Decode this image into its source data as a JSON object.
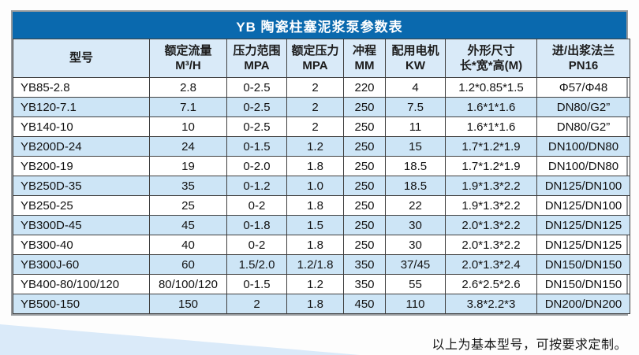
{
  "chart_data": {
    "type": "table",
    "title": "YB 陶瓷柱塞泥浆泵参数表",
    "columns": [
      "型号",
      "额定流量 M³/H",
      "压力范围 MPA",
      "额定压力 MPA",
      "冲程 MM",
      "配用电机 KW",
      "外形尺寸 长*宽*高(M)",
      "进/出浆法兰 PN16"
    ],
    "rows": [
      [
        "YB85-2.8",
        "2.8",
        "0-2.5",
        "2",
        "220",
        "4",
        "1.2*0.85*1.5",
        "Φ57/Φ48"
      ],
      [
        "YB120-7.1",
        "7.1",
        "0-2.5",
        "2",
        "250",
        "7.5",
        "1.6*1*1.6",
        "DN80/G2”"
      ],
      [
        "YB140-10",
        "10",
        "0-2.5",
        "2",
        "250",
        "11",
        "1.6*1*1.6",
        "DN80/G2”"
      ],
      [
        "YB200D-24",
        "24",
        "0-1.5",
        "1.2",
        "250",
        "15",
        "1.7*1.2*1.9",
        "DN100/DN80"
      ],
      [
        "YB200-19",
        "19",
        "0-2.0",
        "1.8",
        "250",
        "18.5",
        "1.7*1.2*1.9",
        "DN100/DN80"
      ],
      [
        "YB250D-35",
        "35",
        "0-1.2",
        "1.0",
        "250",
        "18.5",
        "1.9*1.3*2.2",
        "DN125/DN100"
      ],
      [
        "YB250-25",
        "25",
        "0-2",
        "1.8",
        "250",
        "22",
        "1.9*1.3*2.2",
        "DN125/DN100"
      ],
      [
        "YB300D-45",
        "45",
        "0-1.8",
        "1.5",
        "250",
        "30",
        "2.0*1.3*2.2",
        "DN125/DN125"
      ],
      [
        "YB300-40",
        "40",
        "0-2",
        "1.8",
        "250",
        "30",
        "2.0*1.3*2.2",
        "DN125/DN125"
      ],
      [
        "YB300J-60",
        "60",
        "1.5/2.0",
        "1.2/1.8",
        "350",
        "37/45",
        "2.0*1.3*2.4",
        "DN150/DN150"
      ],
      [
        "YB400-80/100/120",
        "80/100/120",
        "0-1.5",
        "1.2",
        "350",
        "55",
        "2.6*2.5*2.6",
        "DN150/DN150"
      ],
      [
        "YB500-150",
        "150",
        "2",
        "1.8",
        "450",
        "110",
        "3.8*2.2*3",
        "DN200/DN200"
      ]
    ],
    "footnote": "以上为基本型号，可按要求定制。",
    "layout": "header row light blue, data rows alternate white / light blue stripes"
  },
  "ui": {
    "columns": [
      {
        "line1": "型号",
        "line2": ""
      },
      {
        "line1": "额定流量",
        "line2": "M³/H"
      },
      {
        "line1": "压力范围",
        "line2": "MPA"
      },
      {
        "line1": "额定压力",
        "line2": "MPA"
      },
      {
        "line1": "冲程",
        "line2": "MM"
      },
      {
        "line1": "配用电机",
        "line2": "KW"
      },
      {
        "line1": "外形尺寸",
        "line2": "长*宽*高(M)"
      },
      {
        "line1": "进/出浆法兰",
        "line2": "PN16"
      }
    ]
  },
  "colors": {
    "title_bar_blue": "#0a69ae",
    "header_row_blue": "#d9eaf8",
    "stripe_row_blue": "#cde5f6",
    "wedge_blue": "#daeaf9",
    "grid_line": "#3f3f3f",
    "outer_border": "#979a9d"
  }
}
